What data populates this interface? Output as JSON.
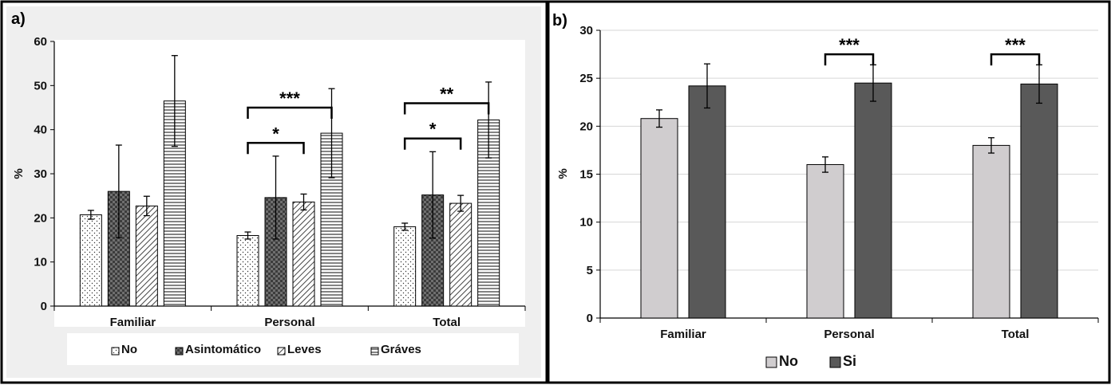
{
  "chart_data": [
    {
      "panel_label": "a)",
      "type": "bar",
      "ylabel": "%",
      "ylim": [
        0,
        60
      ],
      "yticks": [
        0,
        10,
        20,
        30,
        40,
        50,
        60
      ],
      "categories": [
        "Familiar",
        "Personal",
        "Total"
      ],
      "series": [
        {
          "name": "No",
          "values": [
            20.7,
            16.0,
            18.0
          ],
          "errors": [
            1.0,
            0.8,
            0.8
          ],
          "pattern": "dots"
        },
        {
          "name": "Asintomático",
          "values": [
            26.0,
            24.6,
            25.2
          ],
          "errors": [
            10.5,
            9.4,
            9.8
          ],
          "pattern": "checker"
        },
        {
          "name": "Leves",
          "values": [
            22.7,
            23.6,
            23.3
          ],
          "errors": [
            2.2,
            1.8,
            1.8
          ],
          "pattern": "diagonal"
        },
        {
          "name": "Gráves",
          "values": [
            46.5,
            39.2,
            42.2
          ],
          "errors": [
            10.3,
            10.1,
            8.6
          ],
          "pattern": "horizontal"
        }
      ],
      "annotations": [
        {
          "text": "***",
          "category": "Personal",
          "from_series": 0,
          "to_series": 3,
          "level": 45
        },
        {
          "text": "*",
          "category": "Personal",
          "from_series": 0,
          "to_series": 2,
          "level": 37
        },
        {
          "text": "**",
          "category": "Total",
          "from_series": 0,
          "to_series": 3,
          "level": 46
        },
        {
          "text": "*",
          "category": "Total",
          "from_series": 0,
          "to_series": 2,
          "level": 38
        }
      ],
      "legend": "bottom"
    },
    {
      "panel_label": "b)",
      "type": "bar",
      "ylabel": "%",
      "ylim": [
        0,
        30
      ],
      "yticks": [
        0,
        5,
        10,
        15,
        20,
        25,
        30
      ],
      "categories": [
        "Familiar",
        "Personal",
        "Total"
      ],
      "series": [
        {
          "name": "No",
          "values": [
            20.8,
            16.0,
            18.0
          ],
          "errors": [
            0.9,
            0.8,
            0.8
          ],
          "color": "#d0cdcf"
        },
        {
          "name": "Si",
          "values": [
            24.2,
            24.5,
            24.4
          ],
          "errors": [
            2.3,
            1.9,
            2.0
          ],
          "color": "#595959"
        }
      ],
      "annotations": [
        {
          "text": "***",
          "category": "Personal",
          "from_series": 0,
          "to_series": 1,
          "level": 27.5
        },
        {
          "text": "***",
          "category": "Total",
          "from_series": 0,
          "to_series": 1,
          "level": 27.5
        }
      ],
      "legend": "bottom"
    }
  ]
}
